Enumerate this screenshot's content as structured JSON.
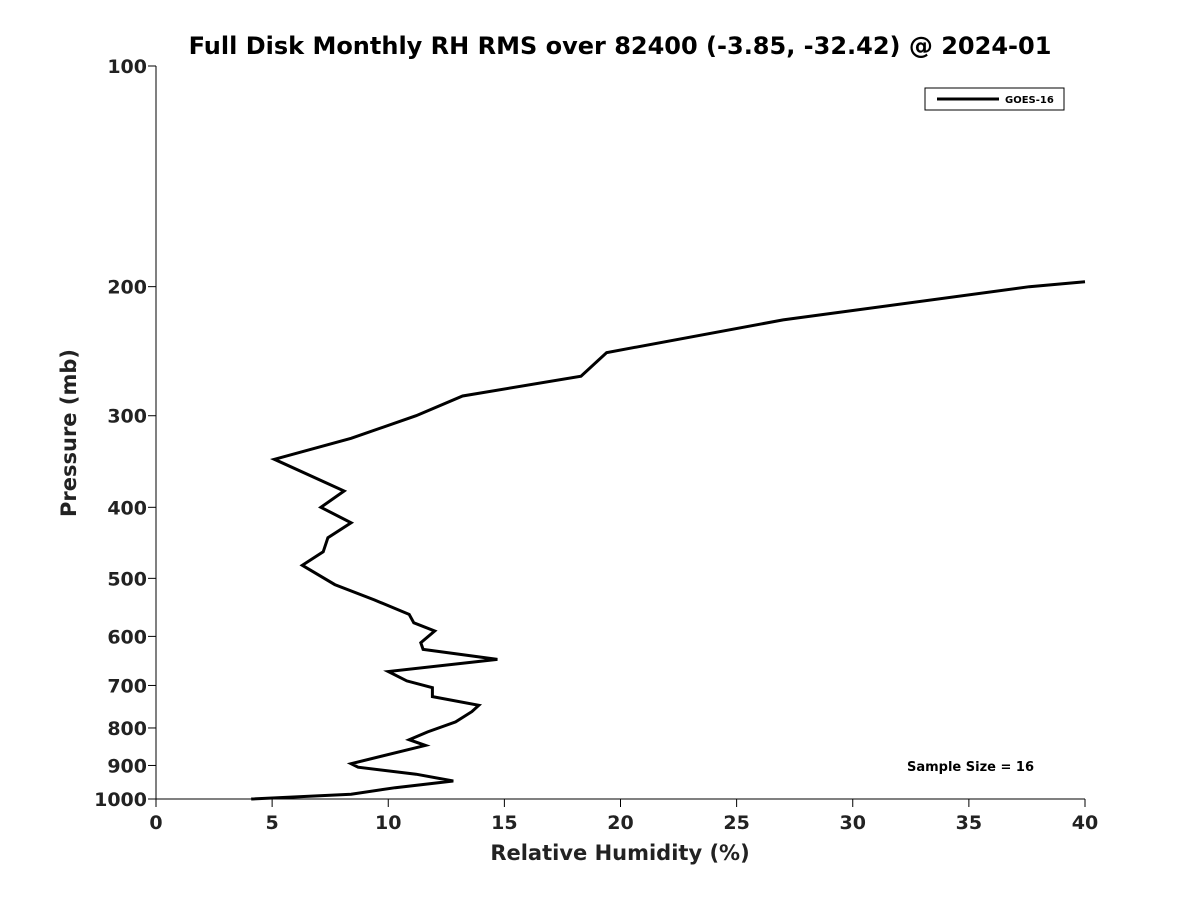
{
  "chart_data": {
    "type": "line",
    "title": "Full Disk Monthly RH RMS over 82400 (-3.85, -32.42) @ 2024-01",
    "xlabel": "Relative Humidity (%)",
    "ylabel": "Pressure (mb)",
    "xlim": [
      0,
      40
    ],
    "ylim": [
      1000,
      100
    ],
    "yscale": "log",
    "x_ticks": [
      0,
      5,
      10,
      15,
      20,
      25,
      30,
      35,
      40
    ],
    "x_tick_labels": [
      "0",
      "5",
      "10",
      "15",
      "20",
      "25",
      "30",
      "35",
      "40"
    ],
    "y_ticks": [
      100,
      200,
      300,
      400,
      500,
      600,
      700,
      800,
      900,
      1000
    ],
    "y_tick_labels": [
      "100",
      "200",
      "300",
      "400",
      "500",
      "600",
      "700",
      "800",
      "900",
      "1000"
    ],
    "grid": false,
    "legend_position": "top-right",
    "series": [
      {
        "name": "GOES-16",
        "color": "#000000",
        "points": [
          [
            40.0,
            197
          ],
          [
            37.6,
            200
          ],
          [
            27.0,
            222
          ],
          [
            19.4,
            246
          ],
          [
            18.3,
            265
          ],
          [
            13.2,
            282
          ],
          [
            11.2,
            300
          ],
          [
            8.4,
            322
          ],
          [
            5.1,
            344
          ],
          [
            8.1,
            380
          ],
          [
            7.1,
            400
          ],
          [
            8.4,
            420
          ],
          [
            7.4,
            440
          ],
          [
            7.2,
            460
          ],
          [
            6.3,
            480
          ],
          [
            7.7,
            510
          ],
          [
            9.4,
            535
          ],
          [
            10.9,
            560
          ],
          [
            11.1,
            575
          ],
          [
            12.0,
            590
          ],
          [
            11.4,
            612
          ],
          [
            11.5,
            625
          ],
          [
            14.7,
            645
          ],
          [
            10.0,
            670
          ],
          [
            10.8,
            690
          ],
          [
            11.9,
            705
          ],
          [
            11.9,
            725
          ],
          [
            13.9,
            745
          ],
          [
            13.6,
            760
          ],
          [
            12.9,
            785
          ],
          [
            11.7,
            810
          ],
          [
            10.9,
            830
          ],
          [
            11.6,
            845
          ],
          [
            8.4,
            895
          ],
          [
            8.7,
            905
          ],
          [
            11.2,
            925
          ],
          [
            12.8,
            945
          ],
          [
            10.3,
            965
          ],
          [
            8.4,
            985
          ],
          [
            4.1,
            1000
          ]
        ]
      }
    ],
    "annotations": [
      {
        "text": "Sample Size = 16"
      }
    ]
  }
}
